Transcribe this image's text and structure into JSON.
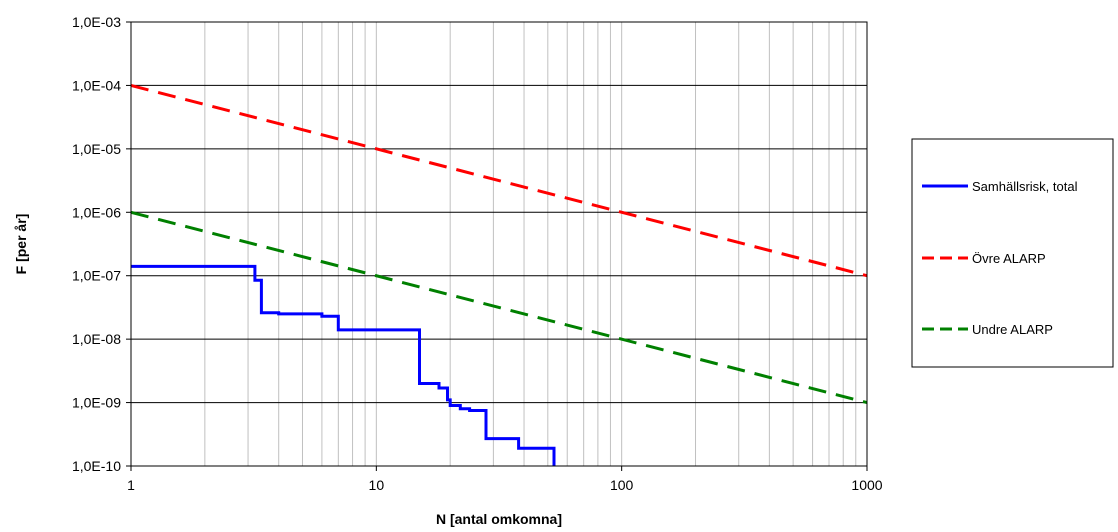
{
  "chart_data": {
    "type": "line",
    "xscale": "log",
    "yscale": "log",
    "xlim": [
      1,
      1000
    ],
    "ylim": [
      1e-10,
      0.001
    ],
    "xlabel": "N [antal omkomna]",
    "ylabel": "F [per år]",
    "x_ticks": [
      {
        "value": 1,
        "label": "1"
      },
      {
        "value": 10,
        "label": "10"
      },
      {
        "value": 100,
        "label": "100"
      },
      {
        "value": 1000,
        "label": "1000"
      }
    ],
    "y_ticks": [
      {
        "value": 0.001,
        "label": "1,0E-03"
      },
      {
        "value": 0.0001,
        "label": "1,0E-04"
      },
      {
        "value": 1e-05,
        "label": "1,0E-05"
      },
      {
        "value": 1e-06,
        "label": "1,0E-06"
      },
      {
        "value": 1e-07,
        "label": "1,0E-07"
      },
      {
        "value": 1e-08,
        "label": "1,0E-08"
      },
      {
        "value": 1e-09,
        "label": "1,0E-09"
      },
      {
        "value": 1e-10,
        "label": "1,0E-10"
      }
    ],
    "grid": {
      "x_minor": true,
      "y_major": true
    },
    "legend_position": "right",
    "series": [
      {
        "name": "Samhällsrisk, total",
        "color": "#0000ff",
        "style": "solid",
        "step": true,
        "points": [
          [
            1,
            1.4e-07
          ],
          [
            3.2,
            1.4e-07
          ],
          [
            3.2,
            8.5e-08
          ],
          [
            3.4,
            8.5e-08
          ],
          [
            3.4,
            2.6e-08
          ],
          [
            4.0,
            2.6e-08
          ],
          [
            4.0,
            2.5e-08
          ],
          [
            6.0,
            2.5e-08
          ],
          [
            6.0,
            2.3e-08
          ],
          [
            7.0,
            2.3e-08
          ],
          [
            7.0,
            1.4e-08
          ],
          [
            15.0,
            1.4e-08
          ],
          [
            15.0,
            2e-09
          ],
          [
            18.0,
            2e-09
          ],
          [
            18.0,
            1.7e-09
          ],
          [
            19.5,
            1.7e-09
          ],
          [
            19.5,
            1.1e-09
          ],
          [
            20.0,
            1.1e-09
          ],
          [
            20.0,
            9e-10
          ],
          [
            22.0,
            9e-10
          ],
          [
            22.0,
            8e-10
          ],
          [
            24.0,
            8e-10
          ],
          [
            24.0,
            7.5e-10
          ],
          [
            28.0,
            7.5e-10
          ],
          [
            28.0,
            2.7e-10
          ],
          [
            38.0,
            2.7e-10
          ],
          [
            38.0,
            1.9e-10
          ],
          [
            53.0,
            1.9e-10
          ],
          [
            53.0,
            1e-10
          ]
        ]
      },
      {
        "name": "Övre ALARP",
        "color": "#ff0000",
        "style": "dashed",
        "points": [
          [
            1,
            0.0001
          ],
          [
            1000,
            1e-07
          ]
        ]
      },
      {
        "name": "Undre ALARP",
        "color": "#008000",
        "style": "dashed",
        "points": [
          [
            1,
            1e-06
          ],
          [
            1000,
            1e-09
          ]
        ]
      }
    ]
  }
}
